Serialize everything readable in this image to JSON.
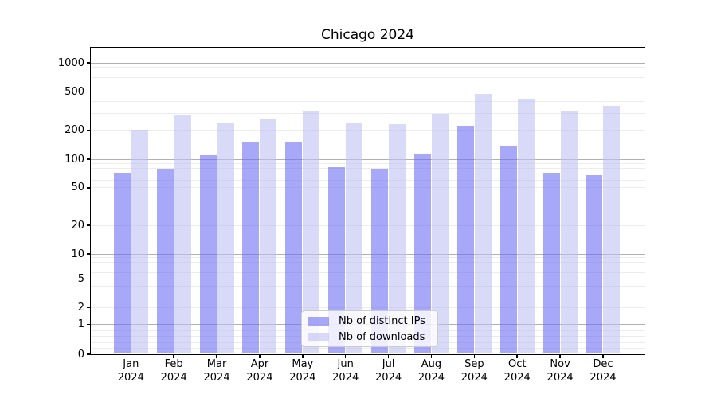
{
  "title": "Chicago 2024",
  "chart_data": {
    "type": "bar",
    "title": "Chicago 2024",
    "categories": [
      "Jan",
      "Feb",
      "Mar",
      "Apr",
      "May",
      "Jun",
      "Jul",
      "Aug",
      "Sep",
      "Oct",
      "Nov",
      "Dec"
    ],
    "x_year_line": "2024",
    "series": [
      {
        "name": "Nb of distinct IPs",
        "color": "rgba(110,110,243,0.6)",
        "values": [
          72,
          80,
          110,
          148,
          148,
          83,
          80,
          112,
          221,
          135,
          72,
          68
        ]
      },
      {
        "name": "Nb of downloads",
        "color": "rgba(192,192,243,0.6)",
        "values": [
          201,
          289,
          239,
          262,
          321,
          239,
          231,
          294,
          478,
          427,
          317,
          356
        ]
      }
    ],
    "yaxis": {
      "scale": "symlog",
      "tick_values": [
        0,
        1,
        2,
        5,
        10,
        20,
        50,
        100,
        200,
        500,
        1000
      ],
      "tick_labels": [
        "0",
        "1",
        "2",
        "5",
        "10",
        "20",
        "50",
        "100",
        "200",
        "500",
        "1000"
      ],
      "major_gridline_values": [
        1,
        10,
        100,
        1000
      ],
      "minor_gridline_values": [
        0.2,
        0.4,
        0.6,
        0.8,
        2,
        3,
        4,
        5,
        6,
        7,
        8,
        9,
        20,
        30,
        40,
        50,
        60,
        70,
        80,
        90,
        200,
        300,
        400,
        500,
        600,
        700,
        800,
        900
      ]
    },
    "legend": {
      "position": "lower center"
    },
    "grid": true
  },
  "colors": {
    "bar_distinct_ips": "rgba(110,110,243,0.6)",
    "bar_downloads": "rgba(192,192,243,0.6)",
    "gridline_major": "#b0b0b0",
    "gridline_minor": "#ececec",
    "spine": "#000000",
    "text": "#000000",
    "legend_border": "#cccccc",
    "legend_bg": "rgba(255,255,255,0.8)"
  }
}
